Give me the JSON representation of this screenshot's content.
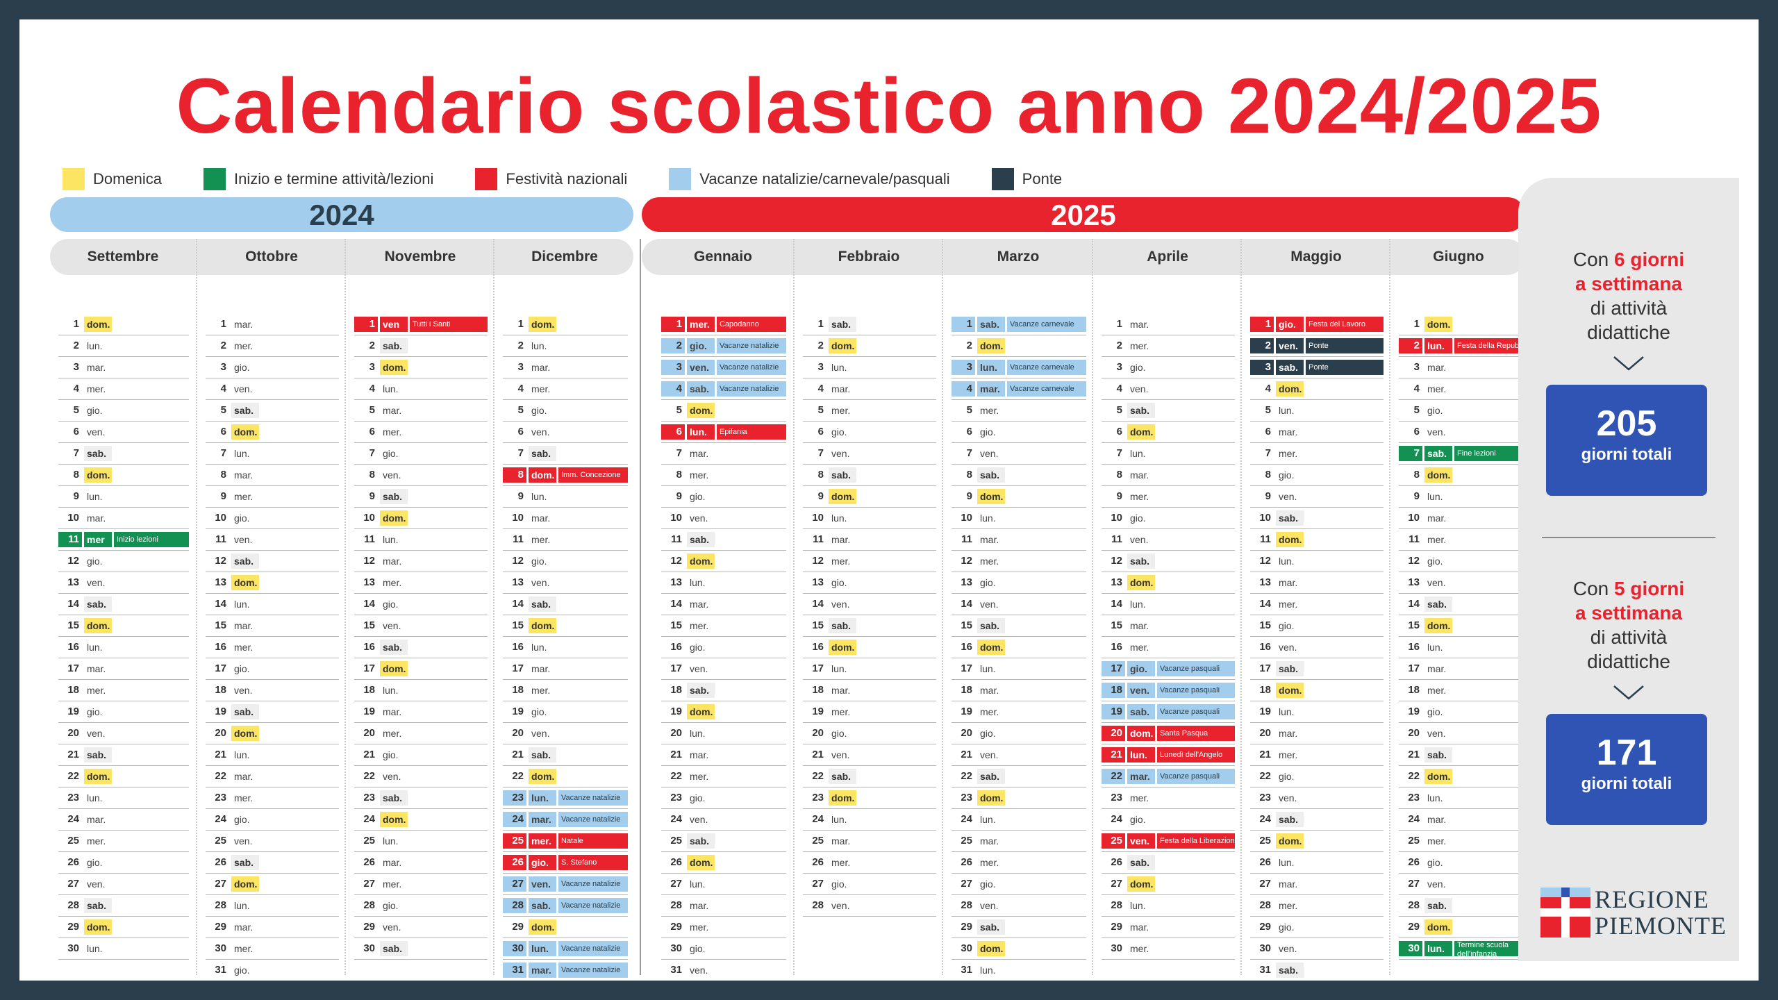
{
  "title": "Calendario scolastico anno 2024/2025",
  "colors": {
    "red": "#e8232e",
    "blue": "#a3cdec",
    "green": "#129152",
    "yellow": "#fde564",
    "dark": "#2b3e4c",
    "box": "#2f54b4"
  },
  "legend": [
    {
      "label": "Domenica",
      "color": "#fde564"
    },
    {
      "label": "Inizio e termine attività/lezioni",
      "color": "#129152"
    },
    {
      "label": "Festività nazionali",
      "color": "#e8232e"
    },
    {
      "label": "Vacanze natalizie/carnevale/pasquali",
      "color": "#a3cdec"
    },
    {
      "label": "Ponte",
      "color": "#2b3e4c"
    }
  ],
  "years": {
    "y2024": "2024",
    "y2025": "2025"
  },
  "side": {
    "six": {
      "l1a": "Con ",
      "l1b": "6 giorni",
      "l2": "a settimana",
      "l3": "di attività",
      "l4": "didattiche",
      "total": "205",
      "total_label": "giorni totali"
    },
    "five": {
      "l1a": "Con ",
      "l1b": "5 giorni",
      "l2": "a settimana",
      "l3": "di attività",
      "l4": "didattiche",
      "total": "171",
      "total_label": "giorni totali"
    }
  },
  "logo": {
    "line1": "REGIONE",
    "line2": "PIEMONTE"
  },
  "months": [
    {
      "name": "Settembre",
      "days": 30,
      "start": 0,
      "events": {
        "11": {
          "type": "grn",
          "label": "Inizio lezioni",
          "wd": "mer"
        }
      }
    },
    {
      "name": "Ottobre",
      "days": 31,
      "start": 2,
      "events": {}
    },
    {
      "name": "Novembre",
      "days": 30,
      "start": 5,
      "events": {
        "1": {
          "type": "hol",
          "label": "Tutti i Santi",
          "wd": "ven"
        }
      }
    },
    {
      "name": "Dicembre",
      "days": 31,
      "start": 0,
      "events": {
        "8": {
          "type": "hol",
          "label": "Imm. Concezione"
        },
        "23": {
          "type": "vac",
          "label": "Vacanze natalizie"
        },
        "24": {
          "type": "vac",
          "label": "Vacanze natalizie"
        },
        "25": {
          "type": "hol",
          "label": "Natale"
        },
        "26": {
          "type": "hol",
          "label": "S. Stefano"
        },
        "27": {
          "type": "vac",
          "label": "Vacanze natalizie"
        },
        "28": {
          "type": "vac",
          "label": "Vacanze natalizie"
        },
        "30": {
          "type": "vac",
          "label": "Vacanze natalizie"
        },
        "31": {
          "type": "vac",
          "label": "Vacanze natalizie"
        }
      }
    },
    {
      "name": "Gennaio",
      "days": 31,
      "start": 3,
      "events": {
        "1": {
          "type": "hol",
          "label": "Capodanno"
        },
        "2": {
          "type": "vac",
          "label": "Vacanze natalizie"
        },
        "3": {
          "type": "vac",
          "label": "Vacanze natalizie"
        },
        "4": {
          "type": "vac",
          "label": "Vacanze natalizie"
        },
        "6": {
          "type": "hol",
          "label": "Epifania"
        }
      }
    },
    {
      "name": "Febbraio",
      "days": 28,
      "start": 6,
      "events": {}
    },
    {
      "name": "Marzo",
      "days": 31,
      "start": 6,
      "events": {
        "1": {
          "type": "vac",
          "label": "Vacanze carnevale"
        },
        "3": {
          "type": "vac",
          "label": "Vacanze carnevale"
        },
        "4": {
          "type": "vac",
          "label": "Vacanze carnevale"
        }
      }
    },
    {
      "name": "Aprile",
      "days": 30,
      "start": 2,
      "events": {
        "17": {
          "type": "vac",
          "label": "Vacanze pasquali"
        },
        "18": {
          "type": "vac",
          "label": "Vacanze pasquali"
        },
        "19": {
          "type": "vac",
          "label": "Vacanze pasquali"
        },
        "20": {
          "type": "hol",
          "label": "Santa Pasqua"
        },
        "21": {
          "type": "hol",
          "label": "Lunedì dell'Angelo"
        },
        "22": {
          "type": "vac",
          "label": "Vacanze pasquali"
        },
        "25": {
          "type": "hol",
          "label": "Festa della Liberazione"
        }
      }
    },
    {
      "name": "Maggio",
      "days": 31,
      "start": 4,
      "events": {
        "1": {
          "type": "hol",
          "label": "Festa del Lavoro"
        },
        "2": {
          "type": "pon",
          "label": "Ponte"
        },
        "3": {
          "type": "pon",
          "label": "Ponte"
        }
      }
    },
    {
      "name": "Giugno",
      "days": 30,
      "start": 0,
      "events": {
        "2": {
          "type": "hol",
          "label": "Festa della Repubblica"
        },
        "7": {
          "type": "grn",
          "label": "Fine lezioni"
        },
        "30": {
          "type": "grn",
          "label": "Termine scuola dell'infanzia"
        }
      }
    }
  ],
  "weekdays": [
    "dom.",
    "lun.",
    "mar.",
    "mer.",
    "gio.",
    "ven.",
    "sab."
  ]
}
